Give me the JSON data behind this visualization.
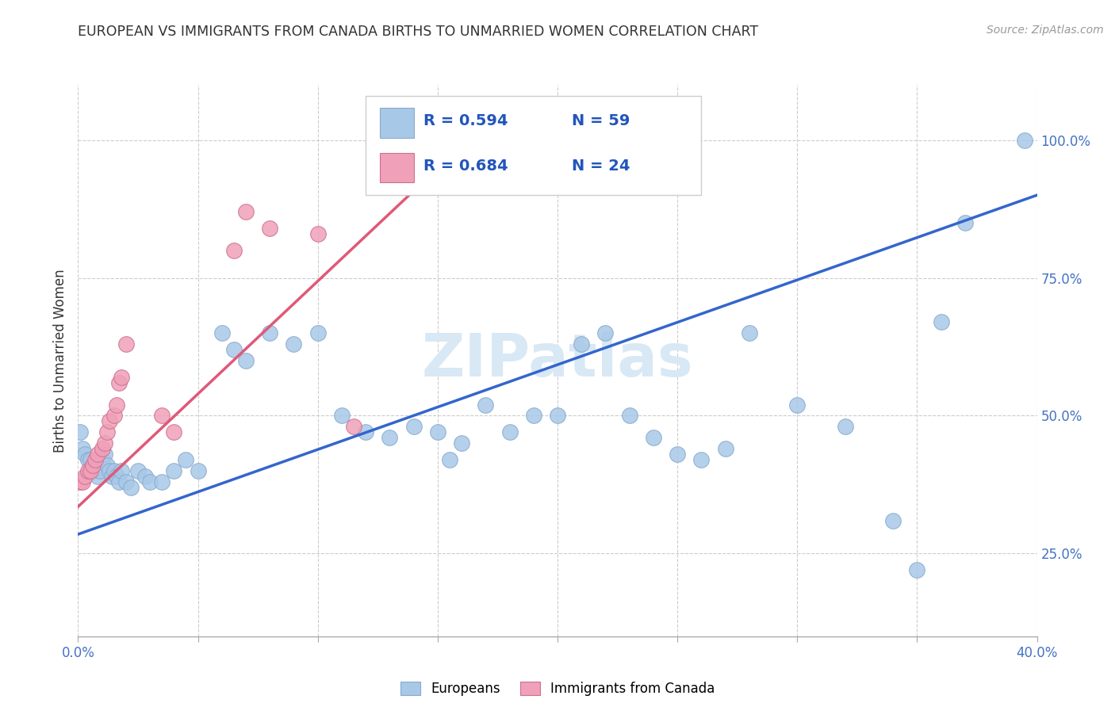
{
  "title": "EUROPEAN VS IMMIGRANTS FROM CANADA BIRTHS TO UNMARRIED WOMEN CORRELATION CHART",
  "source": "Source: ZipAtlas.com",
  "ylabel": "Births to Unmarried Women",
  "xlim": [
    0.0,
    0.4
  ],
  "ylim": [
    0.1,
    1.1
  ],
  "legend_blue_r": "0.594",
  "legend_blue_n": "59",
  "legend_pink_r": "0.684",
  "legend_pink_n": "24",
  "blue_color": "#a8c8e8",
  "pink_color": "#f0a0b8",
  "blue_line_color": "#3366cc",
  "pink_line_color": "#e05878",
  "legend_text_color": "#2255bb",
  "watermark_color": "#d8e8f4",
  "title_color": "#333333",
  "axis_label_color": "#4472c4",
  "blue_line_x0": 0.0,
  "blue_line_y0": 0.285,
  "blue_line_x1": 0.4,
  "blue_line_y1": 0.9,
  "pink_line_x0": 0.0,
  "pink_line_y0": 0.335,
  "pink_line_x1": 0.165,
  "pink_line_y1": 1.01,
  "blue_x": [
    0.001,
    0.002,
    0.003,
    0.004,
    0.005,
    0.006,
    0.007,
    0.008,
    0.009,
    0.01,
    0.011,
    0.012,
    0.013,
    0.014,
    0.015,
    0.016,
    0.017,
    0.018,
    0.02,
    0.022,
    0.025,
    0.028,
    0.03,
    0.035,
    0.04,
    0.045,
    0.05,
    0.06,
    0.065,
    0.07,
    0.08,
    0.09,
    0.1,
    0.11,
    0.12,
    0.13,
    0.14,
    0.15,
    0.155,
    0.16,
    0.17,
    0.18,
    0.19,
    0.2,
    0.21,
    0.22,
    0.23,
    0.24,
    0.25,
    0.26,
    0.27,
    0.28,
    0.3,
    0.32,
    0.34,
    0.35,
    0.36,
    0.37,
    0.395
  ],
  "blue_y": [
    0.47,
    0.44,
    0.43,
    0.42,
    0.42,
    0.41,
    0.4,
    0.39,
    0.4,
    0.42,
    0.43,
    0.41,
    0.4,
    0.39,
    0.4,
    0.39,
    0.38,
    0.4,
    0.38,
    0.37,
    0.4,
    0.39,
    0.38,
    0.38,
    0.4,
    0.42,
    0.4,
    0.65,
    0.62,
    0.6,
    0.65,
    0.63,
    0.65,
    0.5,
    0.47,
    0.46,
    0.48,
    0.47,
    0.42,
    0.45,
    0.52,
    0.47,
    0.5,
    0.5,
    0.63,
    0.65,
    0.5,
    0.46,
    0.43,
    0.42,
    0.44,
    0.65,
    0.52,
    0.48,
    0.31,
    0.22,
    0.67,
    0.85,
    1.0
  ],
  "pink_x": [
    0.001,
    0.002,
    0.003,
    0.004,
    0.005,
    0.006,
    0.007,
    0.008,
    0.01,
    0.011,
    0.012,
    0.013,
    0.015,
    0.016,
    0.017,
    0.018,
    0.02,
    0.035,
    0.04,
    0.065,
    0.07,
    0.08,
    0.1,
    0.115
  ],
  "pink_y": [
    0.38,
    0.38,
    0.39,
    0.4,
    0.4,
    0.41,
    0.42,
    0.43,
    0.44,
    0.45,
    0.47,
    0.49,
    0.5,
    0.52,
    0.56,
    0.57,
    0.63,
    0.5,
    0.47,
    0.8,
    0.87,
    0.84,
    0.83,
    0.48
  ]
}
